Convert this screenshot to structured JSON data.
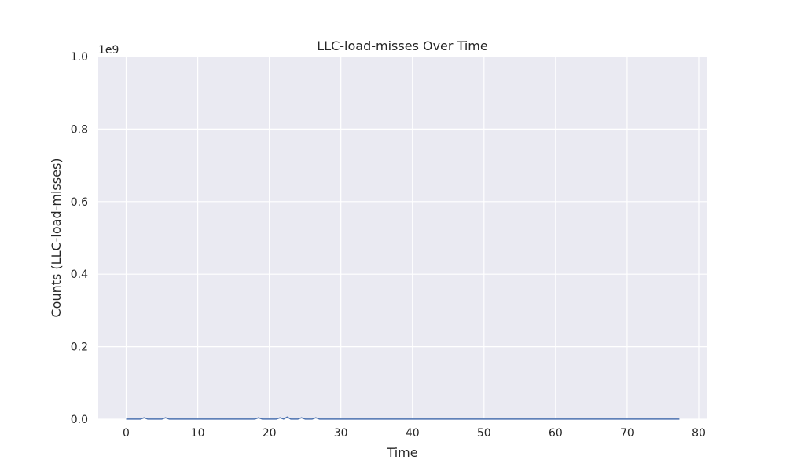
{
  "chart_data": {
    "type": "line",
    "title": "LLC-load-misses Over Time",
    "xlabel": "Time",
    "ylabel": "Counts (LLC-load-misses)",
    "y_offset_label": "1e9",
    "xlim": [
      -3.9,
      81.1
    ],
    "ylim": [
      0.0,
      1.0
    ],
    "xticks": [
      0,
      10,
      20,
      30,
      40,
      50,
      60,
      70,
      80
    ],
    "yticks": [
      0.0,
      0.2,
      0.4,
      0.6,
      0.8,
      1.0
    ],
    "xtick_labels": [
      "0",
      "10",
      "20",
      "30",
      "40",
      "50",
      "60",
      "70",
      "80"
    ],
    "ytick_labels": [
      "0.0",
      "0.2",
      "0.4",
      "0.6",
      "0.8",
      "1.0"
    ],
    "grid": true,
    "colors": {
      "background": "#eaeaf2",
      "grid": "#ffffff",
      "line": "#4c72b0",
      "text": "#262626"
    },
    "series": [
      {
        "x": [
          0,
          1,
          2,
          2.5,
          3,
          4,
          5,
          5.5,
          6,
          8,
          10,
          12,
          14,
          16,
          18,
          18.5,
          19,
          20,
          21,
          21.5,
          22,
          22.5,
          23,
          24,
          24.5,
          25,
          26,
          26.5,
          27,
          28,
          30,
          35,
          40,
          45,
          50,
          55,
          60,
          65,
          70,
          75,
          77.3
        ],
        "y": [
          0.0002,
          0.0003,
          0.0002,
          0.004,
          0.0003,
          0.0002,
          0.0003,
          0.004,
          0.0003,
          0.0002,
          0.0002,
          0.0002,
          0.0002,
          0.0003,
          0.0003,
          0.004,
          0.0003,
          0.0002,
          0.0003,
          0.004,
          0.0003,
          0.006,
          0.0004,
          0.0003,
          0.004,
          0.0003,
          0.0004,
          0.004,
          0.0003,
          0.0002,
          0.0002,
          0.0002,
          0.0002,
          0.0002,
          0.0002,
          0.0002,
          0.0002,
          0.0002,
          0.0002,
          0.0002,
          0.0002
        ]
      }
    ]
  }
}
